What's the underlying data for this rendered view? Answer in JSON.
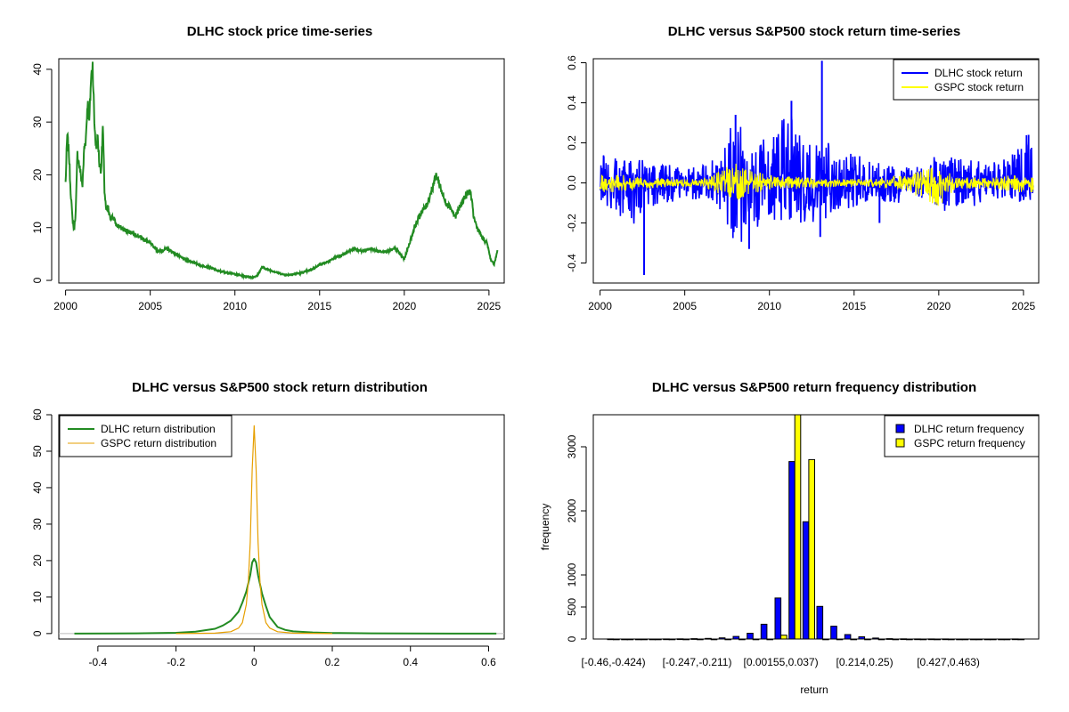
{
  "chart_data": [
    {
      "type": "line",
      "title": "DLHC stock price time-series",
      "xlabel": "",
      "ylabel": "",
      "xlim": [
        1999.6,
        2025.9
      ],
      "ylim": [
        -0.5,
        42
      ],
      "x_ticks": [
        2000,
        2005,
        2010,
        2015,
        2020,
        2025
      ],
      "y_ticks": [
        0,
        10,
        20,
        30,
        40
      ],
      "series": [
        {
          "name": "DLHC stock price",
          "color": "#228B22",
          "x": [
            2000.0,
            2000.1,
            2000.2,
            2000.3,
            2000.4,
            2000.5,
            2000.6,
            2000.7,
            2000.9,
            2001.0,
            2001.1,
            2001.2,
            2001.3,
            2001.4,
            2001.5,
            2001.6,
            2001.7,
            2001.8,
            2001.9,
            2002.0,
            2002.1,
            2002.2,
            2002.3,
            2002.4,
            2002.5,
            2002.6,
            2002.8,
            2003.0,
            2003.5,
            2004.0,
            2004.5,
            2005.0,
            2005.5,
            2006.0,
            2006.5,
            2007.0,
            2007.5,
            2008.0,
            2008.5,
            2009.0,
            2009.5,
            2010.0,
            2010.5,
            2011.0,
            2011.3,
            2011.6,
            2012.0,
            2012.5,
            2013.0,
            2013.5,
            2014.0,
            2014.5,
            2015.0,
            2015.5,
            2016.0,
            2016.5,
            2017.0,
            2017.5,
            2018.0,
            2018.5,
            2019.0,
            2019.5,
            2020.0,
            2020.3,
            2020.6,
            2021.0,
            2021.3,
            2021.6,
            2021.9,
            2022.1,
            2022.4,
            2022.7,
            2023.0,
            2023.3,
            2023.6,
            2023.9,
            2024.1,
            2024.3,
            2024.6,
            2024.9,
            2025.1,
            2025.3,
            2025.5
          ],
          "y": [
            18.5,
            27.5,
            24,
            17,
            12,
            9.5,
            13,
            24,
            20,
            18,
            25,
            27,
            34,
            30,
            38,
            41,
            30,
            25,
            27,
            22,
            21,
            29,
            17,
            13,
            14,
            12,
            12,
            10.5,
            9.5,
            9,
            8,
            7,
            5.5,
            6,
            5,
            4,
            3.5,
            2.8,
            2.5,
            1.8,
            1.5,
            1.2,
            0.8,
            0.6,
            0.8,
            2.5,
            2,
            1.5,
            1,
            1.2,
            1.5,
            2,
            3,
            3.5,
            4.5,
            5,
            6,
            5.5,
            6,
            5.5,
            5.5,
            6,
            4,
            7,
            10,
            13,
            14,
            17,
            20,
            18,
            15,
            14,
            12,
            14,
            16,
            17,
            12,
            10,
            8,
            7,
            4,
            3,
            5.5
          ]
        }
      ]
    },
    {
      "type": "line",
      "title": "DLHC versus S&P500 stock return time-series",
      "xlabel": "",
      "ylabel": "",
      "xlim": [
        1999.6,
        2025.9
      ],
      "ylim": [
        -0.5,
        0.62
      ],
      "x_ticks": [
        2000,
        2005,
        2010,
        2015,
        2020,
        2025
      ],
      "y_ticks": [
        -0.4,
        -0.2,
        0.0,
        0.2,
        0.4,
        0.6
      ],
      "legend": [
        "DLHC stock return",
        "GSPC stock return"
      ],
      "legend_position": "top-right",
      "series": [
        {
          "name": "DLHC stock return",
          "color": "#0000FF",
          "band_years": [
            2000,
            2001,
            2002,
            2003,
            2004,
            2005,
            2006,
            2007,
            2008,
            2009,
            2010,
            2011,
            2012,
            2013,
            2014,
            2015,
            2016,
            2017,
            2018,
            2019,
            2020,
            2021,
            2022,
            2023,
            2024,
            2025
          ],
          "band_max": [
            0.15,
            0.14,
            0.13,
            0.1,
            0.1,
            0.08,
            0.1,
            0.12,
            0.34,
            0.25,
            0.2,
            0.41,
            0.2,
            0.25,
            0.15,
            0.15,
            0.1,
            0.1,
            0.08,
            0.08,
            0.15,
            0.12,
            0.12,
            0.1,
            0.12,
            0.24
          ],
          "band_min": [
            -0.14,
            -0.15,
            -0.25,
            -0.12,
            -0.1,
            -0.08,
            -0.1,
            -0.12,
            -0.33,
            -0.25,
            -0.2,
            -0.22,
            -0.2,
            -0.2,
            -0.15,
            -0.12,
            -0.1,
            -0.1,
            -0.1,
            -0.08,
            -0.15,
            -0.12,
            -0.12,
            -0.1,
            -0.1,
            -0.1
          ],
          "spikes_x": [
            2002.6,
            2008.0,
            2008.8,
            2011.3,
            2013.1,
            2013.0,
            2016.5,
            2025.3
          ],
          "spikes_y": [
            -0.46,
            0.34,
            -0.33,
            0.41,
            0.61,
            -0.27,
            -0.2,
            0.24
          ]
        },
        {
          "name": "GSPC stock return",
          "color": "#FFFF00",
          "band_years": [
            2000,
            2002,
            2004,
            2006,
            2008,
            2009,
            2010,
            2012,
            2014,
            2016,
            2018,
            2020,
            2021,
            2023,
            2025
          ],
          "band_max": [
            0.04,
            0.04,
            0.02,
            0.02,
            0.1,
            0.06,
            0.04,
            0.03,
            0.02,
            0.02,
            0.04,
            0.09,
            0.03,
            0.03,
            0.04
          ],
          "band_min": [
            -0.05,
            -0.04,
            -0.02,
            -0.02,
            -0.09,
            -0.06,
            -0.04,
            -0.03,
            -0.02,
            -0.02,
            -0.04,
            -0.12,
            -0.03,
            -0.03,
            -0.05
          ]
        }
      ]
    },
    {
      "type": "line",
      "title": "DLHC versus S&P500 stock return distribution",
      "xlabel": "",
      "ylabel": "",
      "xlim": [
        -0.5,
        0.64
      ],
      "ylim": [
        -1.5,
        60
      ],
      "x_ticks": [
        -0.4,
        -0.2,
        0.0,
        0.2,
        0.4,
        0.6
      ],
      "y_ticks": [
        0,
        10,
        20,
        30,
        40,
        50,
        60
      ],
      "legend": [
        "DLHC return distribution",
        "GSPC return distribution"
      ],
      "legend_position": "top-left",
      "series": [
        {
          "name": "DLHC return distribution",
          "color": "#228B22",
          "x": [
            -0.46,
            -0.3,
            -0.2,
            -0.15,
            -0.1,
            -0.08,
            -0.06,
            -0.04,
            -0.03,
            -0.02,
            -0.01,
            -0.005,
            0,
            0.005,
            0.01,
            0.02,
            0.03,
            0.04,
            0.06,
            0.08,
            0.1,
            0.15,
            0.2,
            0.3,
            0.4,
            0.62
          ],
          "y": [
            0,
            0.05,
            0.2,
            0.5,
            1.3,
            2.2,
            3.5,
            6,
            8.5,
            11.5,
            16,
            19.5,
            20.5,
            19.5,
            16,
            11,
            7.5,
            4.5,
            1.8,
            1,
            0.6,
            0.3,
            0.15,
            0.05,
            0.02,
            0
          ]
        },
        {
          "name": "GSPC return distribution",
          "color": "#E69F00",
          "x": [
            -0.2,
            -0.1,
            -0.06,
            -0.04,
            -0.03,
            -0.02,
            -0.015,
            -0.01,
            -0.005,
            0,
            0.005,
            0.01,
            0.015,
            0.02,
            0.03,
            0.04,
            0.06,
            0.1,
            0.2
          ],
          "y": [
            0,
            0.1,
            0.5,
            1.5,
            3,
            8,
            14,
            25,
            45,
            57,
            45,
            25,
            14,
            8,
            3,
            1.5,
            0.5,
            0.1,
            0
          ]
        }
      ]
    },
    {
      "type": "bar",
      "title": "DLHC versus S&P500 return frequency distribution",
      "xlabel": "return",
      "ylabel": "frequency",
      "ylim": [
        0,
        3500
      ],
      "y_ticks": [
        0,
        500,
        1000,
        2000,
        3000
      ],
      "category_labels_shown": [
        "[-0.46,-0.424)",
        "[-0.247,-0.211)",
        "[0.00155,0.037)",
        "[0.214,0.25)",
        "[0.427,0.463)"
      ],
      "legend": [
        "DLHC return frequency",
        "GSPC return frequency"
      ],
      "legend_position": "top-right",
      "n_bins": 30,
      "series": [
        {
          "name": "DLHC return frequency",
          "color": "#0000FF",
          "values": [
            1,
            0,
            0,
            0,
            1,
            3,
            6,
            10,
            18,
            40,
            90,
            230,
            640,
            2770,
            1830,
            510,
            200,
            70,
            35,
            15,
            6,
            3,
            2,
            1,
            1,
            0,
            0,
            0,
            0,
            1
          ]
        },
        {
          "name": "GSPC return frequency",
          "color": "#FFFF00",
          "values": [
            0,
            0,
            0,
            0,
            0,
            0,
            0,
            0,
            0,
            0,
            0,
            0,
            60,
            3550,
            2800,
            0,
            0,
            0,
            0,
            0,
            0,
            0,
            0,
            0,
            0,
            0,
            0,
            0,
            0,
            0
          ]
        }
      ]
    }
  ]
}
